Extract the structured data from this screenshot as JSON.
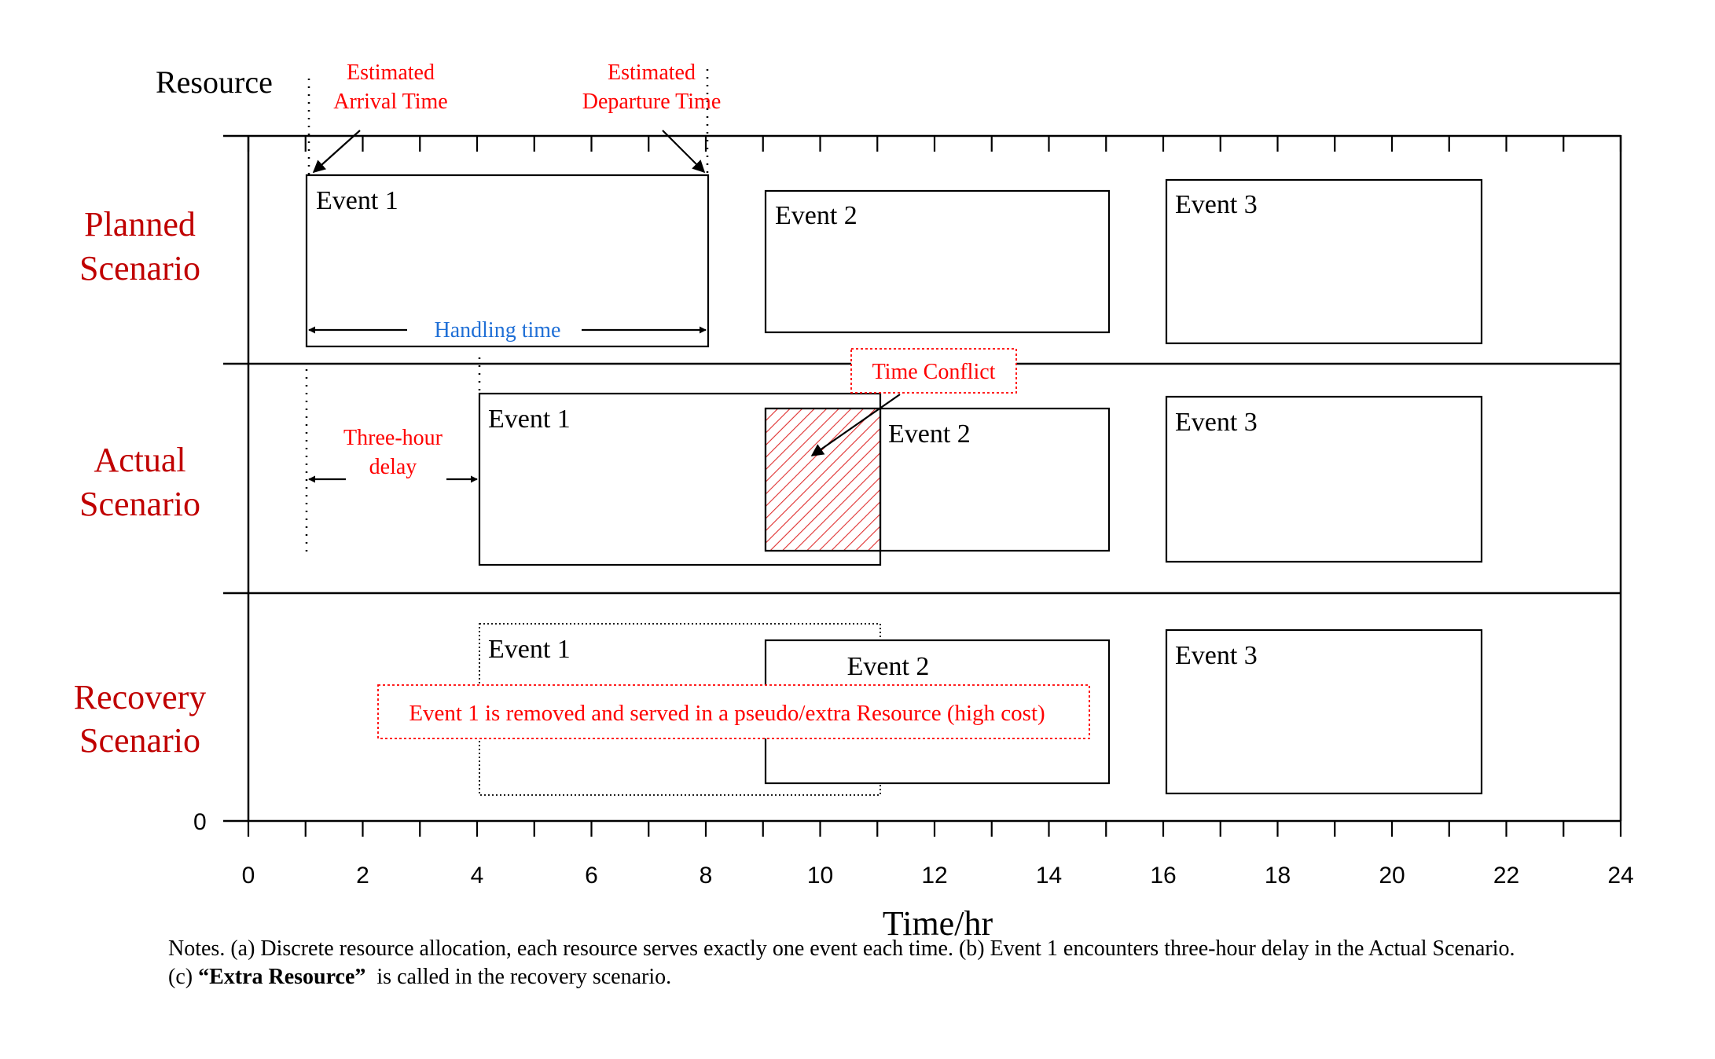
{
  "axis": {
    "y_title": "Resource",
    "y_zero": "0",
    "x_title": "Time/hr",
    "x_ticks": [
      "0",
      "2",
      "4",
      "6",
      "8",
      "10",
      "12",
      "14",
      "16",
      "18",
      "20",
      "22",
      "24"
    ],
    "x_min": 0,
    "x_max": 24
  },
  "rows": [
    {
      "label_line1": "Planned",
      "label_line2": "Scenario"
    },
    {
      "label_line1": "Actual",
      "label_line2": "Scenario"
    },
    {
      "label_line1": "Recovery",
      "label_line2": "Scenario"
    }
  ],
  "events": {
    "planned": [
      {
        "label": "Event 1",
        "start": 1,
        "end": 8
      },
      {
        "label": "Event 2",
        "start": 9,
        "end": 15
      },
      {
        "label": "Event 3",
        "start": 16,
        "end": 21.5
      }
    ],
    "actual": [
      {
        "label": "Event 1",
        "start": 4,
        "end": 11
      },
      {
        "label": "Event 2",
        "start": 9,
        "end": 15
      },
      {
        "label": "Event 3",
        "start": 16,
        "end": 21.5
      }
    ],
    "recovery": [
      {
        "label": "Event 1",
        "start": 4,
        "end": 11,
        "removed": true
      },
      {
        "label": "Event 2",
        "start": 9,
        "end": 15
      },
      {
        "label": "Event 3",
        "start": 16,
        "end": 21.5
      }
    ]
  },
  "annotations": {
    "arrival_line1": "Estimated",
    "arrival_line2": "Arrival Time",
    "departure_line1": "Estimated",
    "departure_line2": "Departure Time",
    "handling_time": "Handling time",
    "time_conflict": "Time Conflict",
    "delay_line1": "Three-hour",
    "delay_line2": "delay",
    "recovery_note": "Event 1 is removed and served in a pseudo/extra Resource (high cost)"
  },
  "notes": {
    "line1": "Notes. (a) Discrete resource allocation, each resource serves exactly one event each time. (b) Event 1 encounters three-hour delay in the Actual Scenario.",
    "line2_prefix": "(c) ",
    "line2_bold": "“Extra Resource”",
    "line2_suffix": "  is called in the recovery scenario."
  },
  "colors": {
    "scenario_label": "#c00000",
    "annotation_red": "#ff0000",
    "handling_blue": "#1f6fd6",
    "line": "#000000"
  }
}
